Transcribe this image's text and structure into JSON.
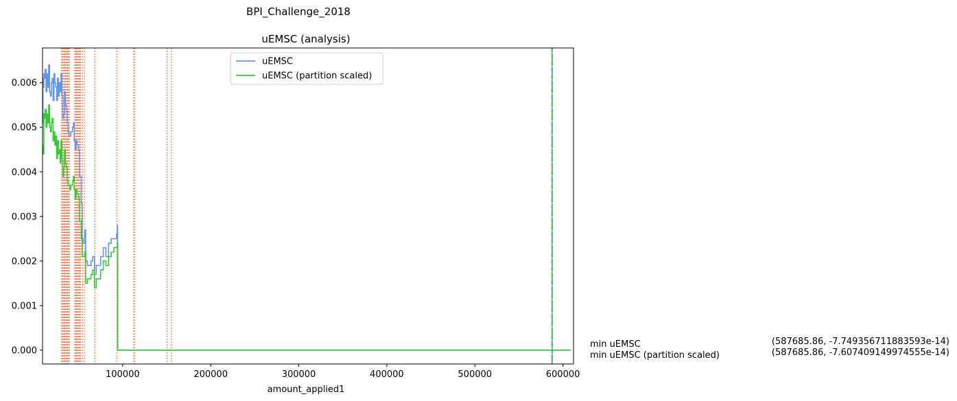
{
  "figure": {
    "suptitle": "BPI_Challenge_2018"
  },
  "chart_data": {
    "type": "line",
    "title": "uEMSC (analysis)",
    "xlabel": "amount_applied1",
    "ylabel": "",
    "xlim": [
      9000,
      612000
    ],
    "ylim": [
      -0.00031,
      0.00678
    ],
    "x_ticks": [
      100000,
      200000,
      300000,
      400000,
      500000,
      600000
    ],
    "x_tick_labels": [
      "100000",
      "200000",
      "300000",
      "400000",
      "500000",
      "600000"
    ],
    "y_ticks": [
      0,
      0.001,
      0.002,
      0.003,
      0.004,
      0.005,
      0.006
    ],
    "y_tick_labels": [
      "0.000",
      "0.001",
      "0.002",
      "0.003",
      "0.004",
      "0.005",
      "0.006"
    ],
    "grid": false,
    "legend": {
      "placement": "top-center"
    },
    "series": [
      {
        "name": "uEMSC",
        "color": "#6495ed",
        "x": [
          9000,
          9500,
          10000,
          10500,
          11000,
          12000,
          13000,
          14000,
          15000,
          16000,
          17000,
          18000,
          19000,
          20000,
          21000,
          22000,
          23000,
          24000,
          25000,
          26000,
          27000,
          28000,
          29000,
          30000,
          31000,
          32000,
          33000,
          34000,
          35000,
          36000,
          37000,
          38000,
          39000,
          40000,
          41000,
          42000,
          43000,
          44000,
          45000,
          46000,
          47000,
          48000,
          49000,
          50000,
          51000,
          52000,
          53000,
          54000,
          55000,
          56000,
          57000,
          58000,
          60000,
          62000,
          64000,
          66000,
          68000,
          70000,
          72000,
          75000,
          78000,
          81000,
          84000,
          87000,
          90000,
          93000,
          94000,
          94300,
          100000,
          200000,
          300000,
          400000,
          500000,
          587685,
          600000,
          609000
        ],
        "y": [
          0.0051,
          0.0061,
          0.0059,
          0.0062,
          0.0061,
          0.0063,
          0.0058,
          0.0062,
          0.0059,
          0.0064,
          0.0058,
          0.0057,
          0.006,
          0.0061,
          0.0056,
          0.0062,
          0.006,
          0.0059,
          0.0056,
          0.0061,
          0.0057,
          0.006,
          0.0058,
          0.0062,
          0.0057,
          0.0052,
          0.0053,
          0.0058,
          0.0055,
          0.0054,
          0.0051,
          0.0049,
          0.0048,
          0.0048,
          0.0049,
          0.0049,
          0.005,
          0.0051,
          0.0047,
          0.0045,
          0.0047,
          0.0046,
          0.0046,
          0.0045,
          0.0039,
          0.0039,
          0.0033,
          0.0025,
          0.0024,
          0.0024,
          0.0027,
          0.002,
          0.0019,
          0.0019,
          0.002,
          0.0021,
          0.0017,
          0.0019,
          0.0019,
          0.0021,
          0.0023,
          0.0021,
          0.0024,
          0.0025,
          0.0025,
          0.0026,
          0.0028,
          0.0,
          0.0,
          0.0,
          0.0,
          0.0,
          0.0,
          0.0,
          0.0,
          0.0
        ]
      },
      {
        "name": "uEMSC (partition scaled)",
        "color": "#32cd32",
        "x": [
          9000,
          9500,
          10000,
          10500,
          11000,
          12000,
          13000,
          14000,
          15000,
          16000,
          17000,
          18000,
          19000,
          20000,
          21000,
          22000,
          23000,
          24000,
          25000,
          26000,
          27000,
          28000,
          29000,
          30000,
          31000,
          32000,
          33000,
          34000,
          35000,
          36000,
          37000,
          38000,
          39000,
          40000,
          41000,
          42000,
          43000,
          44000,
          45000,
          46000,
          47000,
          48000,
          49000,
          50000,
          51000,
          52000,
          53000,
          54000,
          55000,
          56000,
          57000,
          58000,
          60000,
          62000,
          64000,
          66000,
          68000,
          70000,
          72000,
          75000,
          78000,
          81000,
          84000,
          87000,
          90000,
          93000,
          94000,
          94300,
          100000,
          200000,
          300000,
          400000,
          500000,
          587685,
          600000,
          609000
        ],
        "y": [
          0.0045,
          0.0046,
          0.0044,
          0.0053,
          0.0052,
          0.0054,
          0.005,
          0.0053,
          0.0051,
          0.0055,
          0.005,
          0.0049,
          0.0051,
          0.0052,
          0.0047,
          0.0049,
          0.0046,
          0.0048,
          0.0043,
          0.0047,
          0.0044,
          0.0045,
          0.0042,
          0.0047,
          0.0043,
          0.0039,
          0.0041,
          0.0045,
          0.0042,
          0.0041,
          0.0038,
          0.0037,
          0.0037,
          0.0036,
          0.0037,
          0.0037,
          0.0038,
          0.0039,
          0.0036,
          0.0034,
          0.0036,
          0.0035,
          0.0035,
          0.0034,
          0.0029,
          0.0029,
          0.0025,
          0.0021,
          0.0021,
          0.0021,
          0.0022,
          0.0015,
          0.0016,
          0.0016,
          0.0017,
          0.0018,
          0.0014,
          0.0016,
          0.0016,
          0.0018,
          0.002,
          0.0019,
          0.0021,
          0.0022,
          0.0023,
          0.0023,
          0.0024,
          0.0,
          0.0,
          0.0,
          0.0,
          0.0,
          0.0,
          0.0,
          0.0,
          0.0
        ]
      }
    ],
    "vlines": {
      "color": "#ff7f50",
      "style": "dotted",
      "x": [
        30500,
        31500,
        32500,
        33500,
        34500,
        35500,
        36500,
        37500,
        38500,
        39500,
        45500,
        46500,
        47500,
        48500,
        49500,
        50500,
        51500,
        52500,
        54500,
        56500,
        68500,
        93500,
        112500,
        113500,
        150500,
        155500
      ]
    },
    "min_markers": {
      "x": 587685.86,
      "colors": [
        "#ff7f50",
        "#6495ed",
        "#32cd32"
      ]
    },
    "annotations": [
      {
        "label": "min uEMSC",
        "value": "(587685.86, -7.749356711883593e-14)"
      },
      {
        "label": "min uEMSC (partition scaled)",
        "value": "(587685.86, -7.607409149974555e-14)"
      }
    ]
  }
}
